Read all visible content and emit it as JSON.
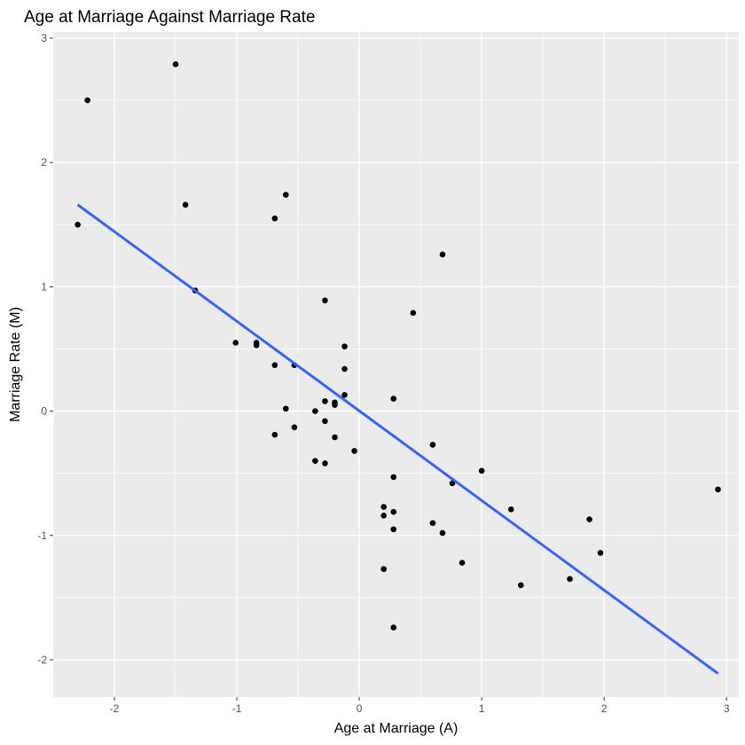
{
  "chart_data": {
    "type": "scatter",
    "title": "Age at Marriage Against Marriage Rate",
    "xlabel": "Age at Marriage (A)",
    "ylabel": "Marriage Rate (M)",
    "xlim": [
      -2.5,
      3.1
    ],
    "ylim": [
      -2.3,
      3.05
    ],
    "xticks": [
      -2,
      -1,
      0,
      1,
      2,
      3
    ],
    "yticks": [
      -2,
      -1,
      0,
      1,
      2,
      3
    ],
    "grid": true,
    "legend": "none",
    "colors": {
      "panel": "#ebebeb",
      "grid": "#ffffff",
      "point": "#000000",
      "fit_line": "#3366ff"
    },
    "points": [
      {
        "x": -2.3,
        "y": 1.5
      },
      {
        "x": -2.22,
        "y": 2.5
      },
      {
        "x": -1.5,
        "y": 2.79
      },
      {
        "x": -1.42,
        "y": 1.66
      },
      {
        "x": -1.34,
        "y": 0.97
      },
      {
        "x": -1.01,
        "y": 0.55
      },
      {
        "x": -0.84,
        "y": 0.55
      },
      {
        "x": -0.84,
        "y": 0.53
      },
      {
        "x": -0.69,
        "y": 1.55
      },
      {
        "x": -0.69,
        "y": 0.37
      },
      {
        "x": -0.69,
        "y": -0.19
      },
      {
        "x": -0.6,
        "y": 1.74
      },
      {
        "x": -0.6,
        "y": 0.02
      },
      {
        "x": -0.53,
        "y": 0.37
      },
      {
        "x": -0.53,
        "y": -0.13
      },
      {
        "x": -0.36,
        "y": 0.0
      },
      {
        "x": -0.36,
        "y": -0.4
      },
      {
        "x": -0.28,
        "y": 0.89
      },
      {
        "x": -0.28,
        "y": 0.08
      },
      {
        "x": -0.28,
        "y": -0.08
      },
      {
        "x": -0.28,
        "y": -0.42
      },
      {
        "x": -0.2,
        "y": 0.07
      },
      {
        "x": -0.2,
        "y": 0.05
      },
      {
        "x": -0.2,
        "y": -0.21
      },
      {
        "x": -0.12,
        "y": 0.52
      },
      {
        "x": -0.12,
        "y": 0.34
      },
      {
        "x": -0.12,
        "y": 0.13
      },
      {
        "x": -0.04,
        "y": -0.32
      },
      {
        "x": 0.2,
        "y": -0.77
      },
      {
        "x": 0.2,
        "y": -0.84
      },
      {
        "x": 0.2,
        "y": -1.27
      },
      {
        "x": 0.28,
        "y": 0.1
      },
      {
        "x": 0.28,
        "y": -0.53
      },
      {
        "x": 0.28,
        "y": -0.81
      },
      {
        "x": 0.28,
        "y": -0.95
      },
      {
        "x": 0.28,
        "y": -1.74
      },
      {
        "x": 0.44,
        "y": 0.79
      },
      {
        "x": 0.6,
        "y": -0.27
      },
      {
        "x": 0.6,
        "y": -0.9
      },
      {
        "x": 0.68,
        "y": 1.26
      },
      {
        "x": 0.68,
        "y": -0.98
      },
      {
        "x": 0.76,
        "y": -0.58
      },
      {
        "x": 0.84,
        "y": -1.22
      },
      {
        "x": 1.0,
        "y": -0.48
      },
      {
        "x": 1.24,
        "y": -0.79
      },
      {
        "x": 1.32,
        "y": -1.4
      },
      {
        "x": 1.72,
        "y": -1.35
      },
      {
        "x": 1.88,
        "y": -0.87
      },
      {
        "x": 1.97,
        "y": -1.14
      },
      {
        "x": 2.93,
        "y": -0.63
      }
    ],
    "fit_line": {
      "x": [
        -2.3,
        2.93
      ],
      "y": [
        1.66,
        -2.11
      ]
    }
  }
}
